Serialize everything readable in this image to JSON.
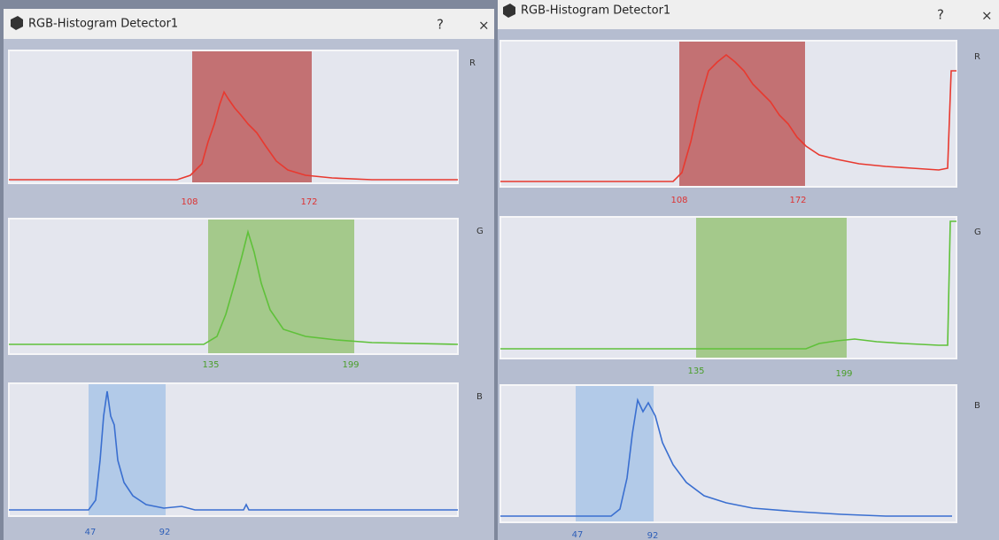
{
  "windows": [
    {
      "title": "RGB-Histogram Detector1",
      "help": "?",
      "close": "×",
      "panels": [
        {
          "channel": "R",
          "low": 108,
          "high": 172
        },
        {
          "channel": "G",
          "low": 135,
          "high": 199
        },
        {
          "channel": "B",
          "low": 47,
          "high": 92
        }
      ]
    },
    {
      "title": "RGB-Histogram Detector1",
      "help": "?",
      "close": "×",
      "panels": [
        {
          "channel": "R",
          "low": 108,
          "high": 172
        },
        {
          "channel": "G",
          "low": 135,
          "high": 199
        },
        {
          "channel": "B",
          "low": 47,
          "high": 92
        }
      ]
    }
  ]
}
